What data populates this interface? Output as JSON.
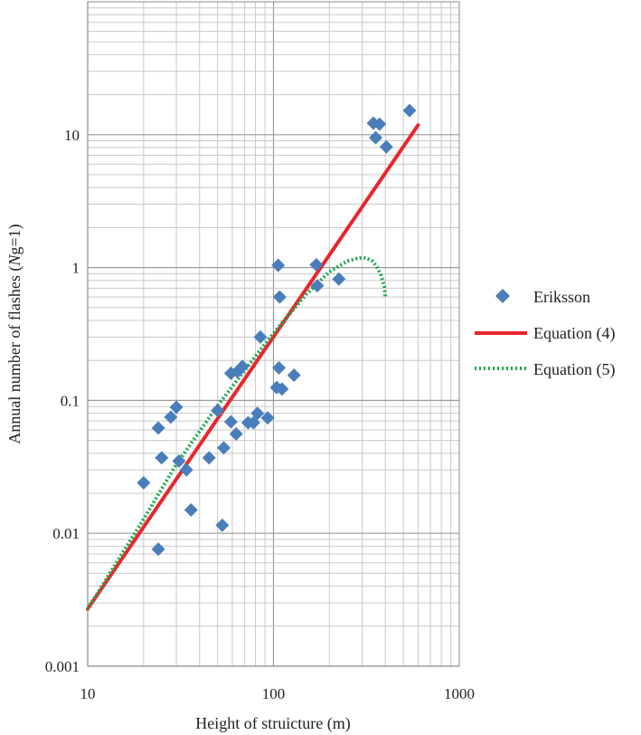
{
  "chart_data": {
    "type": "scatter",
    "xlabel": "Height of struicture (m)",
    "ylabel_prefix": "Annual number of flashes (",
    "ylabel_italic": "N",
    "ylabel_suffix": "g=1)",
    "x_scale": "log",
    "y_scale": "log",
    "xlim": [
      10,
      1000
    ],
    "ylim": [
      0.001,
      100
    ],
    "x_ticks": [
      10,
      100,
      1000
    ],
    "x_tick_labels": [
      "10",
      "100",
      "1000"
    ],
    "y_ticks": [
      0.001,
      0.01,
      0.1,
      1,
      10
    ],
    "y_tick_labels": [
      "0.001",
      "0.01",
      "0.1",
      "1",
      "10"
    ],
    "grid": true,
    "legend_position": "right",
    "series": [
      {
        "name": "Eriksson",
        "kind": "markers",
        "marker": "diamond",
        "color": "#4a7ebb",
        "x": [
          20,
          24,
          24,
          25,
          28,
          30,
          31,
          34,
          36,
          45,
          50,
          53,
          54,
          59,
          59,
          63,
          64,
          68,
          73,
          78,
          82,
          85,
          93,
          104,
          106,
          107,
          108,
          111,
          129,
          170,
          172,
          225,
          345,
          355,
          372,
          405,
          540
        ],
        "y": [
          0.024,
          0.0076,
          0.062,
          0.037,
          0.075,
          0.089,
          0.035,
          0.03,
          0.015,
          0.037,
          0.084,
          0.0115,
          0.044,
          0.069,
          0.16,
          0.056,
          0.165,
          0.18,
          0.068,
          0.068,
          0.08,
          0.3,
          0.074,
          0.125,
          1.04,
          0.176,
          0.6,
          0.122,
          0.155,
          1.05,
          0.73,
          0.82,
          12.2,
          9.5,
          12,
          8.1,
          15.2
        ]
      },
      {
        "name": "Equation (4)",
        "kind": "line",
        "color": "#e8262c",
        "x": [
          10,
          600
        ],
        "y": [
          0.0027,
          11.8
        ]
      },
      {
        "name": "Equation (5)",
        "kind": "dotted-line",
        "color": "#1aa84b",
        "x": [
          10,
          20,
          30,
          50,
          80,
          100,
          150,
          200,
          250,
          280,
          300,
          320,
          340,
          360,
          380,
          395,
          400
        ],
        "y": [
          0.0027,
          0.0128,
          0.033,
          0.091,
          0.215,
          0.32,
          0.63,
          0.93,
          1.12,
          1.17,
          1.19,
          1.17,
          1.12,
          1.02,
          0.87,
          0.72,
          0.6
        ]
      }
    ]
  }
}
